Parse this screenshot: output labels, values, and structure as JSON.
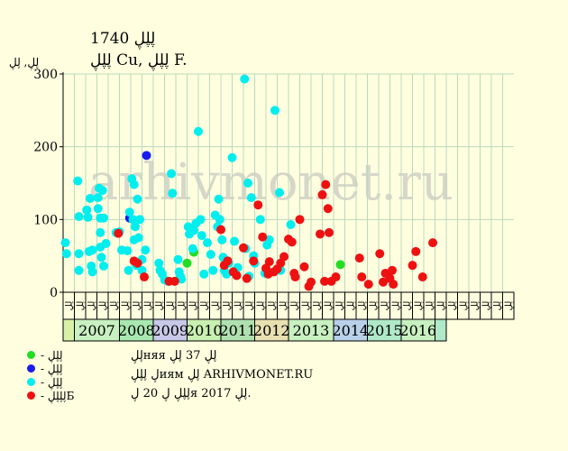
{
  "title": "ڸڸڸ 1740",
  "subtitle": "ڸڸڸ Cu, ڸڸڸ F.",
  "watermark": "arhivmonet.ru",
  "notes": [
    "ڸڸняя ڸڸ 37 ڸڸ",
    "ڸ ڸڸڸиям ڸڸ ARHIVMONET.RU",
    "ڸڸڸ ڸ 20 ڸя 2017 ڸڸ."
  ],
  "legend": [
    {
      "label": "- ڸڸڸ",
      "color": "#22dd22"
    },
    {
      "label": "- ڸڸڸ",
      "color": "#1a1aee"
    },
    {
      "label": "- ڸڸڸ",
      "color": "#00eeee"
    },
    {
      "label": "- ڸڸڸڸБ",
      "color": "#ee1111"
    }
  ],
  "colors": {
    "background": "#ffffe0",
    "grid": "#bcd8bc",
    "axis": "#000000"
  },
  "chart_data": {
    "type": "scatter",
    "ylabel": "ڸڸ, ڸڸ",
    "ylim": [
      0,
      300
    ],
    "yticks": [
      0,
      100,
      200,
      300
    ],
    "grid": true,
    "quarter_labels": [
      "ڸڸ",
      "ڸڸ",
      "ڸڸ",
      "ڸڸ",
      "ڸڸ",
      "ڸڸ",
      "ڸڸ",
      "ڸڸ",
      "ڸڸ",
      "ڸڸ",
      "ڸڸ",
      "ڸڸ",
      "ڸڸ",
      "ڸڸ",
      "ڸڸ",
      "ڸڸ",
      "ڸڸ",
      "ڸڸ",
      "ڸڸ",
      "ڸڸ",
      "ڸڸ",
      "ڸڸ",
      "ڸڸ",
      "ڸڸ",
      "ڸڸ",
      "ڸڸ",
      "ڸڸ",
      "ڸڸ",
      "ڸڸ",
      "ڸڸ",
      "ڸڸ",
      "ڸڸ",
      "ڸڸ",
      "ڸڸ",
      "ڸڸ",
      "ڸڸ",
      "ڸڸ",
      "ڸڸ",
      "ڸڸ",
      "ڸڸ"
    ],
    "years": [
      {
        "label": "",
        "start": 0,
        "span": 1,
        "color": "#d8f0a8"
      },
      {
        "label": "2007",
        "start": 1,
        "span": 4,
        "color": "#c8f0c0"
      },
      {
        "label": "2008",
        "start": 5,
        "span": 3,
        "color": "#a8e8b0"
      },
      {
        "label": "2009",
        "start": 8,
        "span": 3,
        "color": "#c8c8e8"
      },
      {
        "label": "2010",
        "start": 11,
        "span": 3,
        "color": "#c8f0b0"
      },
      {
        "label": "2011",
        "start": 14,
        "span": 3,
        "color": "#b0e0b0"
      },
      {
        "label": "2012",
        "start": 17,
        "span": 3,
        "color": "#e8e0b0"
      },
      {
        "label": "2013",
        "start": 20,
        "span": 4,
        "color": "#c8f0c0"
      },
      {
        "label": "2014",
        "start": 24,
        "span": 3,
        "color": "#b8d0e8"
      },
      {
        "label": "2015",
        "start": 27,
        "span": 3,
        "color": "#b0e8c8"
      },
      {
        "label": "2016",
        "start": 30,
        "span": 3,
        "color": "#c8f0c0"
      },
      {
        "label": "",
        "start": 33,
        "span": 1,
        "color": "#b0e8c8"
      }
    ],
    "series": [
      {
        "name": "- ڸڸڸ",
        "color": "#22dd22",
        "points": [
          [
            11.0,
            40
          ],
          [
            11.6,
            55
          ],
          [
            24.6,
            38
          ]
        ]
      },
      {
        "name": "- ڸڸڸ",
        "color": "#1a1aee",
        "points": [
          [
            5.9,
            102
          ],
          [
            7.4,
            188
          ]
        ]
      },
      {
        "name": "- ڸڸڸ",
        "color": "#00eeee",
        "points": [
          [
            0.2,
            68
          ],
          [
            0.3,
            53
          ],
          [
            1.3,
            153
          ],
          [
            1.4,
            104
          ],
          [
            1.4,
            53
          ],
          [
            1.4,
            30
          ],
          [
            2.1,
            113
          ],
          [
            2.2,
            103
          ],
          [
            2.3,
            56
          ],
          [
            2.4,
            129
          ],
          [
            2.5,
            36
          ],
          [
            2.6,
            58
          ],
          [
            2.6,
            28
          ],
          [
            3.1,
            130
          ],
          [
            3.1,
            115
          ],
          [
            3.2,
            143
          ],
          [
            3.3,
            102
          ],
          [
            3.3,
            82
          ],
          [
            3.3,
            62
          ],
          [
            3.4,
            48
          ],
          [
            3.5,
            140
          ],
          [
            3.6,
            102
          ],
          [
            3.6,
            36
          ],
          [
            3.8,
            67
          ],
          [
            4.7,
            82
          ],
          [
            5.0,
            83
          ],
          [
            5.2,
            58
          ],
          [
            5.7,
            57
          ],
          [
            5.8,
            30
          ],
          [
            5.9,
            110
          ],
          [
            6.1,
            156
          ],
          [
            6.2,
            100
          ],
          [
            6.3,
            148
          ],
          [
            6.3,
            72
          ],
          [
            6.4,
            90
          ],
          [
            6.5,
            37
          ],
          [
            6.6,
            128
          ],
          [
            6.7,
            75
          ],
          [
            6.8,
            100
          ],
          [
            7.0,
            45
          ],
          [
            7.0,
            30
          ],
          [
            7.3,
            58
          ],
          [
            8.5,
            40
          ],
          [
            8.6,
            30
          ],
          [
            8.8,
            25
          ],
          [
            9.0,
            17
          ],
          [
            9.3,
            15
          ],
          [
            9.6,
            163
          ],
          [
            9.7,
            136
          ],
          [
            10.2,
            45
          ],
          [
            10.3,
            28
          ],
          [
            10.4,
            22
          ],
          [
            10.5,
            18
          ],
          [
            11.1,
            90
          ],
          [
            11.2,
            80
          ],
          [
            11.5,
            60
          ],
          [
            11.6,
            85
          ],
          [
            11.8,
            95
          ],
          [
            12.0,
            221
          ],
          [
            12.2,
            100
          ],
          [
            12.3,
            78
          ],
          [
            12.5,
            25
          ],
          [
            12.8,
            68
          ],
          [
            13.1,
            52
          ],
          [
            13.3,
            30
          ],
          [
            13.5,
            106
          ],
          [
            13.7,
            90
          ],
          [
            13.8,
            128
          ],
          [
            13.9,
            100
          ],
          [
            14.1,
            72
          ],
          [
            14.2,
            48
          ],
          [
            14.3,
            30
          ],
          [
            14.5,
            25
          ],
          [
            14.7,
            40
          ],
          [
            15.0,
            185
          ],
          [
            15.2,
            70
          ],
          [
            15.3,
            30
          ],
          [
            15.5,
            34
          ],
          [
            16.1,
            293
          ],
          [
            16.2,
            60
          ],
          [
            16.4,
            150
          ],
          [
            16.5,
            22
          ],
          [
            16.7,
            130
          ],
          [
            16.9,
            50
          ],
          [
            17.0,
            40
          ],
          [
            17.5,
            100
          ],
          [
            17.9,
            26
          ],
          [
            18.1,
            65
          ],
          [
            18.3,
            72
          ],
          [
            18.8,
            250
          ],
          [
            19.2,
            137
          ],
          [
            19.3,
            30
          ],
          [
            20.2,
            93
          ]
        ]
      },
      {
        "name": "- ڸڸڸڸБ",
        "color": "#ee1111",
        "points": [
          [
            4.9,
            81
          ],
          [
            6.3,
            43
          ],
          [
            6.6,
            40
          ],
          [
            7.2,
            21
          ],
          [
            9.4,
            15
          ],
          [
            9.9,
            15
          ],
          [
            14.0,
            86
          ],
          [
            14.3,
            37
          ],
          [
            14.6,
            43
          ],
          [
            15.1,
            28
          ],
          [
            15.4,
            23
          ],
          [
            16.0,
            61
          ],
          [
            16.3,
            19
          ],
          [
            16.9,
            43
          ],
          [
            17.3,
            120
          ],
          [
            17.7,
            76
          ],
          [
            18.0,
            33
          ],
          [
            18.2,
            25
          ],
          [
            18.3,
            42
          ],
          [
            18.7,
            28
          ],
          [
            19.0,
            32
          ],
          [
            19.3,
            40
          ],
          [
            19.6,
            49
          ],
          [
            20.0,
            73
          ],
          [
            20.3,
            69
          ],
          [
            20.5,
            26
          ],
          [
            20.6,
            21
          ],
          [
            21.0,
            100
          ],
          [
            21.4,
            35
          ],
          [
            21.8,
            8
          ],
          [
            22.0,
            14
          ],
          [
            22.8,
            80
          ],
          [
            23.0,
            134
          ],
          [
            23.2,
            15
          ],
          [
            23.3,
            148
          ],
          [
            23.5,
            115
          ],
          [
            23.6,
            82
          ],
          [
            23.8,
            15
          ],
          [
            24.2,
            21
          ],
          [
            26.3,
            47
          ],
          [
            26.5,
            21
          ],
          [
            27.1,
            11
          ],
          [
            28.1,
            53
          ],
          [
            28.4,
            14
          ],
          [
            28.6,
            26
          ],
          [
            29.0,
            19
          ],
          [
            29.2,
            30
          ],
          [
            29.3,
            11
          ],
          [
            31.0,
            37
          ],
          [
            31.3,
            56
          ],
          [
            31.9,
            21
          ],
          [
            32.8,
            68
          ]
        ]
      }
    ]
  }
}
